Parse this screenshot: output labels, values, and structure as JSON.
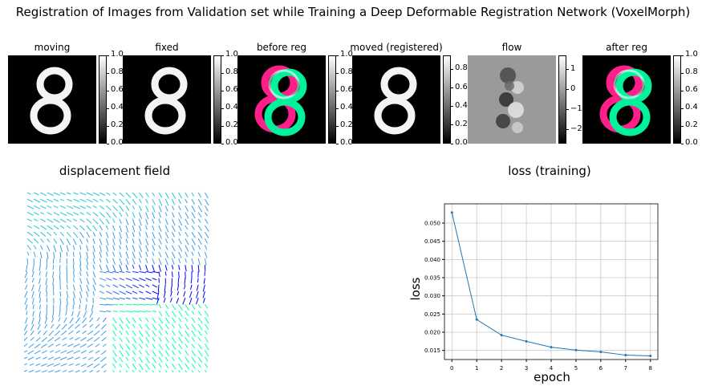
{
  "suptitle": "Registration of Images from Validation set while Training a Deep Deformable Registration Network (VoxelMorph)",
  "panels": [
    {
      "title": "moving",
      "image": "digit-8-grayscale",
      "cbar": {
        "colormap": "gray",
        "ticks": [
          "1.0",
          "0.8",
          "0.6",
          "0.4",
          "0.2",
          "0.0"
        ],
        "range": [
          0,
          1
        ]
      }
    },
    {
      "title": "fixed",
      "image": "digit-8-grayscale",
      "cbar": {
        "colormap": "gray",
        "ticks": [
          "1.0",
          "0.8",
          "0.6",
          "0.4",
          "0.2",
          "0.0"
        ],
        "range": [
          0,
          1
        ]
      }
    },
    {
      "title": "before reg",
      "image": "overlay-magenta-green",
      "cbar": {
        "colormap": "gray",
        "ticks": [
          "1.0",
          "0.8",
          "0.6",
          "0.4",
          "0.2",
          "0.0"
        ],
        "range": [
          0,
          1
        ]
      }
    },
    {
      "title": "moved (registered)",
      "image": "digit-8-grayscale",
      "cbar": {
        "colormap": "gray",
        "ticks": [
          "0.8",
          "0.6",
          "0.4",
          "0.2",
          "0.0"
        ],
        "range": [
          0,
          0.95
        ]
      }
    },
    {
      "title": "flow",
      "image": "flow-gray",
      "cbar": {
        "colormap": "gray",
        "ticks": [
          "1",
          "0",
          "−1",
          "−2"
        ],
        "range": [
          -2.7,
          1.7
        ]
      }
    },
    {
      "title": "after reg",
      "image": "overlay-magenta-green",
      "cbar": {
        "colormap": "gray",
        "ticks": [
          "1.0",
          "0.8",
          "0.6",
          "0.4",
          "0.2",
          "0.0"
        ],
        "range": [
          0,
          1
        ]
      }
    }
  ],
  "displacement": {
    "title": "displacement field",
    "colors": [
      "#00ffaa",
      "#3aa0e8",
      "#0000ff"
    ]
  },
  "chart_data": {
    "type": "line",
    "title": "loss (training)",
    "xlabel": "epoch",
    "ylabel": "loss",
    "x": [
      0,
      1,
      2,
      3,
      4,
      5,
      6,
      7,
      8
    ],
    "series": [
      {
        "values": [
          0.0529,
          0.0235,
          0.0192,
          0.0175,
          0.0159,
          0.0151,
          0.0146,
          0.0137,
          0.0135
        ],
        "color": "#1f77b4"
      }
    ],
    "xticks": [
      "0",
      "1",
      "2",
      "3",
      "4",
      "5",
      "6",
      "7",
      "8"
    ],
    "yticks": [
      "0.015",
      "0.020",
      "0.025",
      "0.030",
      "0.035",
      "0.040",
      "0.045",
      "0.050"
    ],
    "xlim": [
      -0.3,
      8.3
    ],
    "ylim": [
      0.0125,
      0.0553
    ],
    "grid": true
  }
}
